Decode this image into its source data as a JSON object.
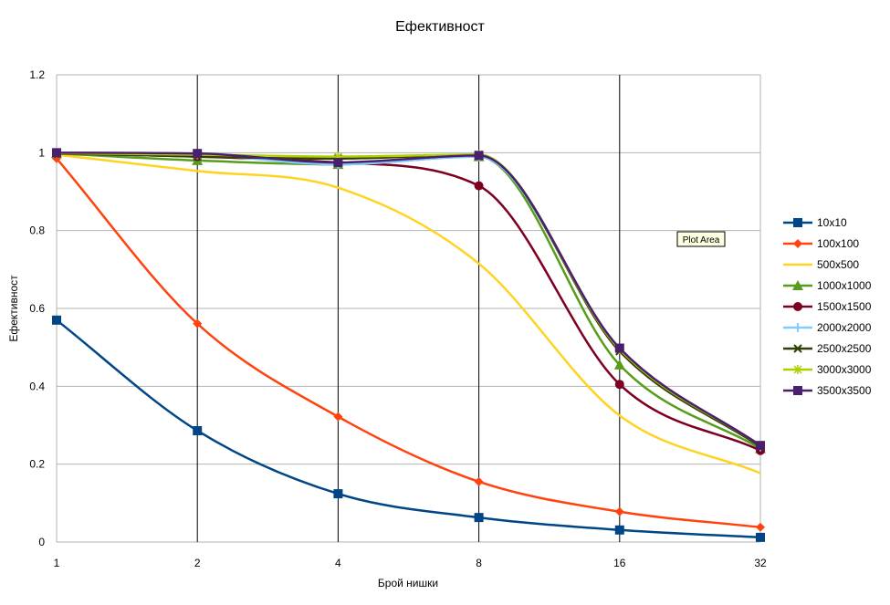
{
  "chart_data": {
    "type": "line",
    "title": "Ефективност",
    "xlabel": "Брой нишки",
    "ylabel": "Ефективност",
    "categories": [
      "1",
      "2",
      "4",
      "8",
      "16",
      "32"
    ],
    "ylim": [
      0,
      1.2
    ],
    "yticks": [
      "0",
      "0.2",
      "0.4",
      "0.6",
      "0.8",
      "1",
      "1.2"
    ],
    "grid": "horizontal gridlines, vertical lines at categories",
    "legend_position": "right",
    "series": [
      {
        "name": "10x10",
        "color": "#004586",
        "marker": "square",
        "values": [
          0.57,
          0.286,
          0.124,
          0.063,
          0.031,
          0.012
        ]
      },
      {
        "name": "100x100",
        "color": "#ff420e",
        "marker": "diamond",
        "values": [
          0.985,
          0.561,
          0.322,
          0.155,
          0.078,
          0.038
        ]
      },
      {
        "name": "500x500",
        "color": "#ffd320",
        "marker": "none",
        "values": [
          0.995,
          0.953,
          0.91,
          0.715,
          0.325,
          0.177
        ]
      },
      {
        "name": "1000x1000",
        "color": "#579d1c",
        "marker": "triangle",
        "values": [
          0.998,
          0.98,
          0.97,
          0.99,
          0.455,
          0.24
        ]
      },
      {
        "name": "1500x1500",
        "color": "#7e0021",
        "marker": "circle",
        "values": [
          0.998,
          0.99,
          0.975,
          0.915,
          0.405,
          0.235
        ]
      },
      {
        "name": "2000x2000",
        "color": "#83caff",
        "marker": "plus",
        "values": [
          0.999,
          0.995,
          0.97,
          0.99,
          0.495,
          0.245
        ]
      },
      {
        "name": "2500x2500",
        "color": "#314004",
        "marker": "x",
        "values": [
          0.999,
          0.99,
          0.985,
          0.995,
          0.49,
          0.245
        ]
      },
      {
        "name": "3000x3000",
        "color": "#aecf00",
        "marker": "star",
        "values": [
          0.999,
          0.995,
          0.99,
          0.995,
          0.495,
          0.248
        ]
      },
      {
        "name": "3500x3500",
        "color": "#4b1f6f",
        "marker": "square",
        "values": [
          1.0,
          0.998,
          0.975,
          0.993,
          0.498,
          0.248
        ]
      }
    ],
    "tooltip": "Plot Area"
  }
}
